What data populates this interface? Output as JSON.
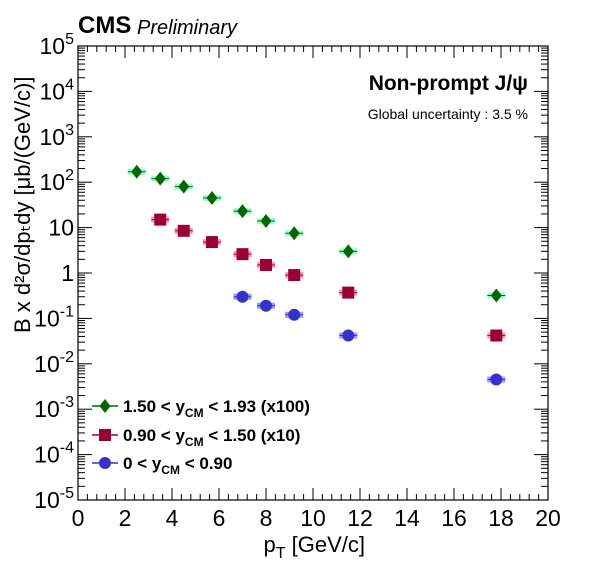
{
  "header": {
    "experiment": "CMS",
    "status": "Preliminary",
    "particle": "Non-prompt J/ψ",
    "global_uncertainty": "Global uncertainty : 3.5 %"
  },
  "colors": {
    "series1": "#006600",
    "series1_box": "#99ffcc",
    "series2": "#990033",
    "series2_box": "#ff99aa",
    "series3": "#3333cc",
    "series3_box": "#9999ff"
  },
  "chart_data": {
    "type": "scatter",
    "xlabel": {
      "main": "p",
      "sub": "T",
      "rest": " [GeV/c]"
    },
    "ylabel": "B x d²σ/dpₜdy [μb/(GeV/c)]",
    "xlim": [
      0,
      20
    ],
    "ylim": [
      1e-05,
      100000
    ],
    "y_scale": "log",
    "x_ticks": [
      "0",
      "2",
      "4",
      "6",
      "8",
      "10",
      "12",
      "14",
      "16",
      "18",
      "20"
    ],
    "y_ticks": [
      {
        "base": "10",
        "exp": "-5"
      },
      {
        "base": "10",
        "exp": "-4"
      },
      {
        "base": "10",
        "exp": "-3"
      },
      {
        "base": "10",
        "exp": "-2"
      },
      {
        "base": "10",
        "exp": "-1"
      },
      {
        "base": "1",
        "exp": ""
      },
      {
        "base": "10",
        "exp": ""
      },
      {
        "base": "10",
        "exp": "2"
      },
      {
        "base": "10",
        "exp": "3"
      },
      {
        "base": "10",
        "exp": "4"
      },
      {
        "base": "10",
        "exp": "5"
      }
    ],
    "legend_position": "bottom-left",
    "series": [
      {
        "label_pre": "1.50 < y",
        "label_sub": "CM",
        "label_post": " < 1.93 (x100)",
        "marker": "diamond",
        "x": [
          2.5,
          3.5,
          4.5,
          5.7,
          7.0,
          8.0,
          9.2,
          11.5,
          17.8
        ],
        "y": [
          170,
          120,
          80,
          45,
          23,
          14,
          7.5,
          3.0,
          0.32
        ]
      },
      {
        "label_pre": "0.90 < y",
        "label_sub": "CM",
        "label_post": " < 1.50 (x10)",
        "marker": "square",
        "x": [
          3.5,
          4.5,
          5.7,
          7.0,
          8.0,
          9.2,
          11.5,
          17.8
        ],
        "y": [
          15,
          8.5,
          4.8,
          2.6,
          1.5,
          0.9,
          0.37,
          0.042
        ]
      },
      {
        "label_pre": "0 < y",
        "label_sub": "CM",
        "label_post": " < 0.90",
        "marker": "circle",
        "x": [
          7.0,
          8.0,
          9.2,
          11.5,
          17.8
        ],
        "y": [
          0.3,
          0.19,
          0.12,
          0.042,
          0.0045
        ]
      }
    ]
  }
}
